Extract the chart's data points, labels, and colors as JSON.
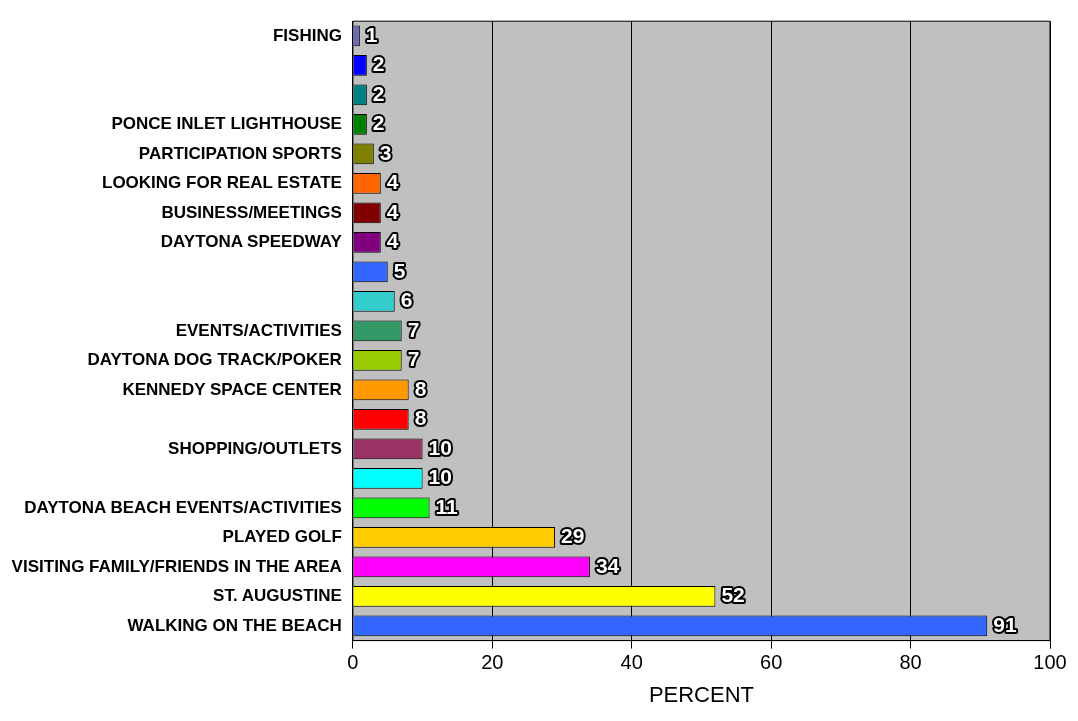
{
  "chart_data": {
    "type": "bar",
    "orientation": "horizontal",
    "xlabel": "PERCENT",
    "categories": [
      "FISHING",
      null,
      null,
      "PONCE INLET LIGHTHOUSE",
      "PARTICIPATION SPORTS",
      "LOOKING FOR REAL ESTATE",
      "BUSINESS/MEETINGS",
      "DAYTONA SPEEDWAY",
      null,
      null,
      "EVENTS/ACTIVITIES",
      "DAYTONA DOG TRACK/POKER",
      "KENNEDY SPACE CENTER",
      null,
      "SHOPPING/OUTLETS",
      null,
      "DAYTONA BEACH EVENTS/ACTIVITIES",
      "PLAYED GOLF",
      "VISITING FAMILY/FRIENDS IN THE AREA",
      "ST. AUGUSTINE",
      "WALKING ON THE BEACH"
    ],
    "values": [
      1,
      2,
      2,
      2,
      3,
      4,
      4,
      4,
      5,
      6,
      7,
      7,
      8,
      8,
      10,
      10,
      11,
      29,
      34,
      52,
      91
    ],
    "colors": [
      "#6b6bb5",
      "#0000ff",
      "#008080",
      "#008000",
      "#808000",
      "#ff6600",
      "#800000",
      "#800080",
      "#3366ff",
      "#33cccc",
      "#339966",
      "#99cc00",
      "#ff9900",
      "#ff0000",
      "#993366",
      "#00ffff",
      "#00ff00",
      "#ffcc00",
      "#ff00ff",
      "#ffff00",
      "#3366ff"
    ],
    "xlim": [
      0,
      100
    ],
    "xticks": [
      0,
      20,
      40,
      60,
      80,
      100
    ],
    "grid": "x",
    "data_labels": true,
    "legend": false
  }
}
